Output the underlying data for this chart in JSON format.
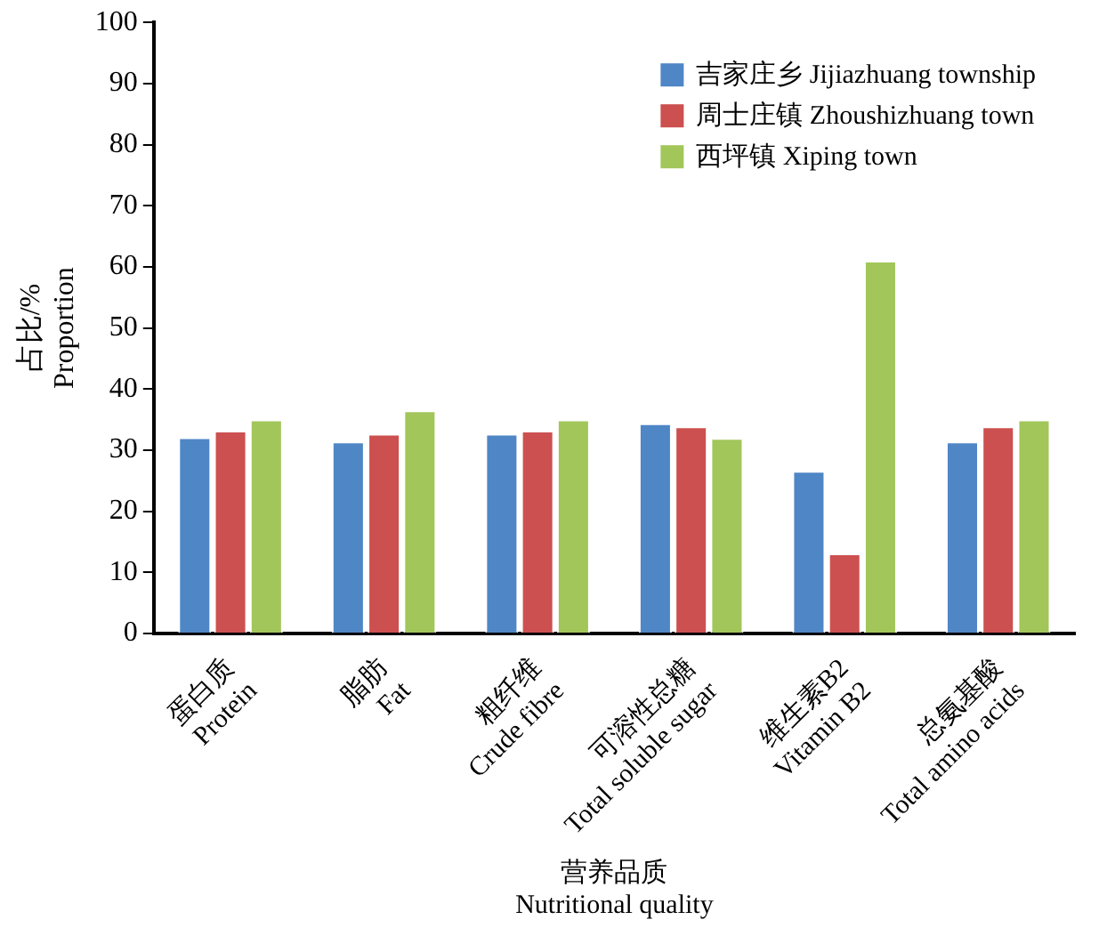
{
  "chart_data": {
    "type": "bar",
    "xlabel": "营养品质\nNutritional quality",
    "ylabel": "占比/%\nProportion",
    "categories": [
      "蛋白质\nProtein",
      "脂肪\nFat",
      "粗纤维\nCrude fibre",
      "可溶性总糖\nTotal soluble sugar",
      "维生素B2\nVitamin B2",
      "总氨基酸\nTotal amino acids"
    ],
    "series": [
      {
        "name": "吉家庄乡 Jijiazhuang township",
        "color": "#4f86c6",
        "values": [
          32.1,
          31.4,
          32.7,
          34.4,
          26.6,
          31.4
        ]
      },
      {
        "name": "周士庄镇 Zhoushizhuang town",
        "color": "#cc504f",
        "values": [
          33.2,
          32.7,
          33.2,
          33.9,
          13.1,
          33.9
        ]
      },
      {
        "name": "西坪镇 Xiping town",
        "color": "#a2c65a",
        "values": [
          35.0,
          36.5,
          35.0,
          32.0,
          61.0,
          35.0
        ]
      }
    ],
    "ylim": [
      0,
      100
    ],
    "yticks": [
      0,
      10,
      20,
      30,
      40,
      50,
      60,
      70,
      80,
      90,
      100
    ],
    "grid": false,
    "legend": "top right"
  }
}
